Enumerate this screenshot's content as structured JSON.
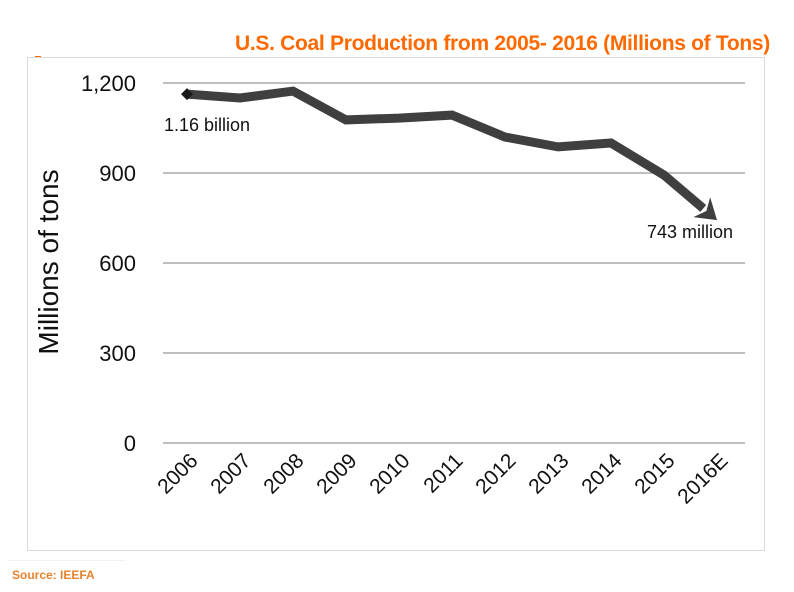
{
  "source": "Source: IEEFA",
  "colors": {
    "title": "#ff6a00",
    "source": "#e8832f",
    "line": "#3f3f3f",
    "grid": "#bfbfbf"
  },
  "chart_data": {
    "type": "line",
    "title": "U.S. Coal Production from 2005- 2016 (Millions of Tons)",
    "xlabel": "",
    "ylabel": "Millions of tons",
    "categories": [
      "2006",
      "2007",
      "2008",
      "2009",
      "2010",
      "2011",
      "2012",
      "2013",
      "2014",
      "2015",
      "2016E"
    ],
    "series": [
      {
        "name": "U.S. Coal Production",
        "values": [
          1163,
          1150,
          1173,
          1077,
          1083,
          1093,
          1020,
          987,
          1000,
          893,
          743
        ]
      }
    ],
    "ylim": [
      0,
      1200
    ],
    "yticks": [
      0,
      300,
      600,
      900,
      1200
    ],
    "ytick_labels": [
      "0",
      "300",
      "600",
      "900",
      "1,200"
    ],
    "grid": true,
    "legend": "none",
    "start_marker": "diamond",
    "end_marker": "arrow",
    "annotations": [
      {
        "text": "1.16 billion",
        "category": "2006",
        "position": "below"
      },
      {
        "text": "743 million",
        "category": "2016E",
        "position": "below"
      }
    ]
  }
}
